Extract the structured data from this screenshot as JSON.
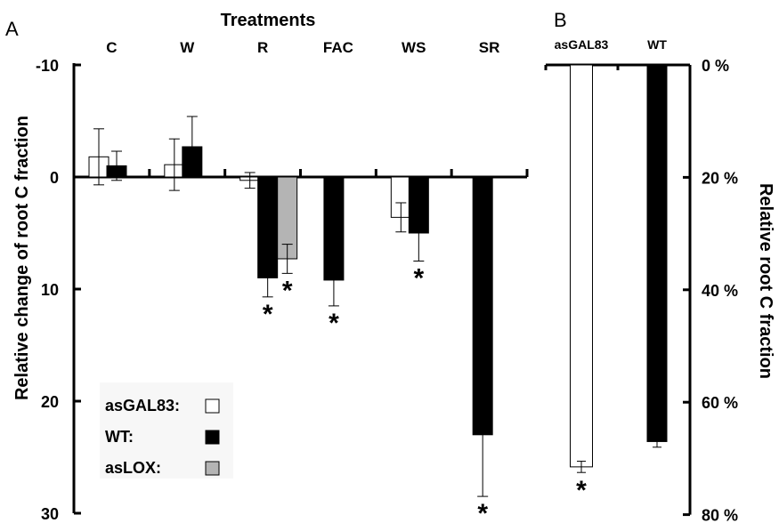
{
  "chart_data": [
    {
      "panel_label": "A",
      "type": "bar",
      "title": "Treatments",
      "ylabel": "Relative change of root C fraction",
      "ylim": [
        -10,
        30
      ],
      "y_inverted": true,
      "yticks": [
        "-10",
        "0",
        "10",
        "20",
        "30"
      ],
      "categories": [
        "C",
        "W",
        "R",
        "FAC",
        "WS",
        "SR"
      ],
      "series": [
        {
          "name": "asGAL83:",
          "color": "#ffffff",
          "values": [
            -1.8,
            -1.1,
            0.3,
            null,
            3.6,
            null
          ],
          "errors": [
            2.5,
            2.3,
            0.7,
            null,
            1.3,
            null
          ],
          "significant": [
            false,
            false,
            false,
            false,
            false,
            false
          ]
        },
        {
          "name": "WT:",
          "color": "#000000",
          "values": [
            -1.0,
            -2.7,
            9.0,
            9.2,
            5.0,
            23.0
          ],
          "errors": [
            1.3,
            2.7,
            1.7,
            2.3,
            2.5,
            5.5
          ],
          "significant": [
            false,
            false,
            true,
            true,
            true,
            true
          ]
        },
        {
          "name": "asLOX:",
          "color": "#b4b4b4",
          "values": [
            null,
            null,
            7.3,
            null,
            null,
            null
          ],
          "errors": [
            null,
            null,
            1.3,
            null,
            null,
            null
          ],
          "significant": [
            false,
            false,
            true,
            false,
            false,
            false
          ]
        }
      ],
      "legend_position": "bottom-left",
      "significance_marker": "*"
    },
    {
      "panel_label": "B",
      "type": "bar",
      "ylabel": "Relative root C fraction",
      "ylim": [
        0,
        80
      ],
      "y_inverted": true,
      "yticks": [
        "0 %",
        "20 %",
        "40 %",
        "60 %",
        "80 %"
      ],
      "categories": [
        "asGAL83",
        "WT"
      ],
      "values": [
        71.5,
        67.0
      ],
      "errors": [
        1.0,
        1.0
      ],
      "colors": [
        "#ffffff",
        "#000000"
      ],
      "significant": [
        true,
        false
      ],
      "significance_marker": "*"
    }
  ]
}
